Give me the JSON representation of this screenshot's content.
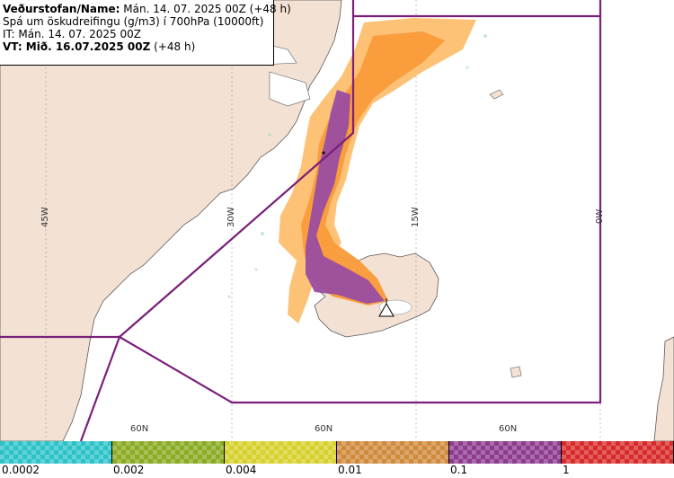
{
  "info": {
    "line1_bold": "Veðurstofan/Name:",
    "line1_rest": "Mán. 14. 07. 2025 00Z (+48 h)",
    "line2": "Spá um öskudreifingu (g/m3) í 700hPa (10000ft)",
    "line3": "IT: Mán. 14. 07. 2025 00Z",
    "line4_bold": "VT: Mið. 16.07.2025 00Z",
    "line4_rest": "(+48 h)"
  },
  "graticule": {
    "lon_labels": [
      "45W",
      "30W",
      "15W",
      "0W"
    ],
    "lat_labels": [
      "60N",
      "60N",
      "60N"
    ]
  },
  "legend": {
    "ticks": [
      "0.0002",
      "0.002",
      "0.004",
      "0.01",
      "0.1",
      "1"
    ],
    "colors": [
      "#2cc3c8",
      "#8aab22",
      "#d6d12c",
      "#cf8a3c",
      "#8e3a8e",
      "#d82a2a"
    ]
  },
  "colors": {
    "land": "#f3e1d3",
    "sea": "#ffffff",
    "ash_low": "#fdbf6f",
    "ash_mid": "#f99b3a",
    "ash_high": "#9b4da0",
    "region": "#7a1f7a"
  },
  "icons": {
    "volcano": "volcano-icon"
  }
}
